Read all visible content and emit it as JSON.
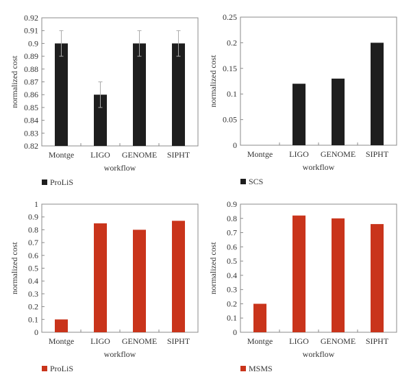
{
  "chart_data": [
    {
      "type": "bar",
      "title": "",
      "xlabel": "workflow",
      "ylabel": "normalized cost",
      "categories": [
        "Montge",
        "LIGO",
        "GENOME",
        "SIPHT"
      ],
      "series": [
        {
          "name": "ProLiS",
          "values": [
            0.9,
            0.86,
            0.9,
            0.9
          ],
          "error": [
            0.01,
            0.01,
            0.01,
            0.01
          ],
          "color": "#1e1e1e"
        }
      ],
      "ylim": [
        0.82,
        0.92
      ],
      "yticks": [
        "0.82",
        "0.83",
        "0.84",
        "0.85",
        "0.86",
        "0.87",
        "0.88",
        "0.89",
        "0.9",
        "0.91",
        "0.92"
      ],
      "legend_position": "bottom-left",
      "grid": false
    },
    {
      "type": "bar",
      "title": "",
      "xlabel": "workflow",
      "ylabel": "normalized cost",
      "categories": [
        "Montge",
        "LIGO",
        "GENOME",
        "SIPHT"
      ],
      "series": [
        {
          "name": "SCS",
          "values": [
            0,
            0.12,
            0.13,
            0.2
          ],
          "color": "#1e1e1e"
        }
      ],
      "ylim": [
        0,
        0.25
      ],
      "yticks": [
        "0",
        "0.05",
        "0.1",
        "0.15",
        "0.2",
        "0.25"
      ],
      "legend_position": "bottom-left",
      "grid": false
    },
    {
      "type": "bar",
      "title": "",
      "xlabel": "workflow",
      "ylabel": "normalized cost",
      "categories": [
        "Montge",
        "LIGO",
        "GENOME",
        "SIPHT"
      ],
      "series": [
        {
          "name": "ProLiS",
          "values": [
            0.1,
            0.85,
            0.8,
            0.87
          ],
          "color": "#c9341b"
        }
      ],
      "ylim": [
        0,
        1
      ],
      "yticks": [
        "0",
        "0.1",
        "0.2",
        "0.3",
        "0.4",
        "0.5",
        "0.6",
        "0.7",
        "0.8",
        "0.9",
        "1"
      ],
      "legend_position": "bottom-left",
      "grid": false
    },
    {
      "type": "bar",
      "title": "",
      "xlabel": "workflow",
      "ylabel": "normalized cost",
      "categories": [
        "Montge",
        "LIGO",
        "GENOME",
        "SIPHT"
      ],
      "series": [
        {
          "name": "MSMS",
          "values": [
            0.2,
            0.82,
            0.8,
            0.76
          ],
          "color": "#c9341b"
        }
      ],
      "ylim": [
        0,
        0.9
      ],
      "yticks": [
        "0",
        "0.1",
        "0.2",
        "0.3",
        "0.4",
        "0.5",
        "0.6",
        "0.7",
        "0.8",
        "0.9"
      ],
      "legend_position": "bottom-left",
      "grid": false
    }
  ]
}
